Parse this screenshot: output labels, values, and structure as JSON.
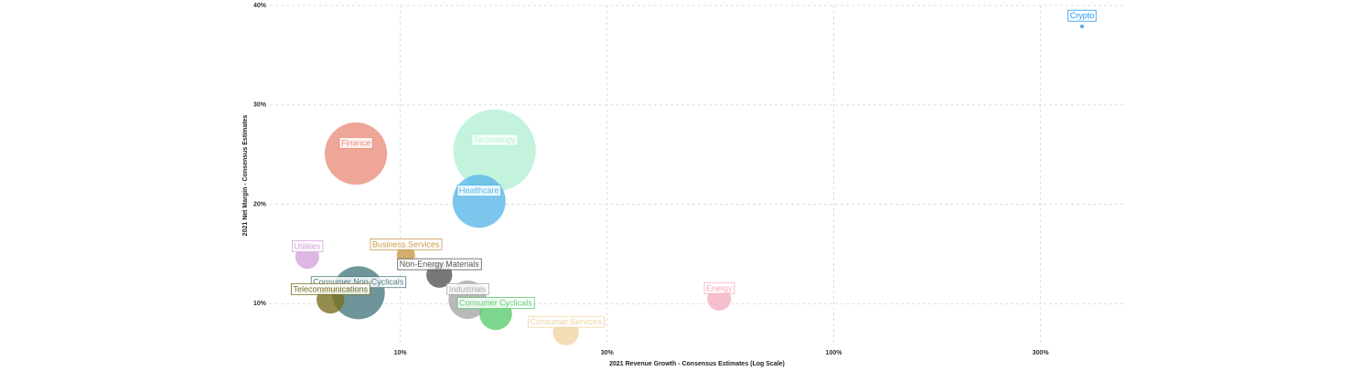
{
  "chart_data": {
    "type": "bubble",
    "x_label": "2021 Revenue Growth - Consensus Estimates (Log Scale)",
    "y_label": "2021 Net Margin - Consensus Estimates",
    "x_log": true,
    "grid": true,
    "xlim": [
      5,
      470
    ],
    "ylim": [
      5.8,
      40
    ],
    "xticks": [
      {
        "value": 10,
        "label": "10%"
      },
      {
        "value": 30,
        "label": "30%"
      },
      {
        "value": 100,
        "label": "100%"
      },
      {
        "value": 300,
        "label": "300%"
      }
    ],
    "yticks": [
      {
        "value": 10,
        "label": "10%"
      },
      {
        "value": 20,
        "label": "20%"
      },
      {
        "value": 30,
        "label": "30%"
      },
      {
        "value": 40,
        "label": "40%"
      }
    ],
    "series": [
      {
        "name": "Crypto",
        "color": "#2196f3",
        "x": [
          374
        ],
        "values": [
          37.9
        ],
        "sizes": [
          0.04
        ]
      },
      {
        "name": "Finance",
        "color": "#e8907e",
        "x": [
          7.9
        ],
        "values": [
          25.1
        ],
        "sizes": [
          11.6
        ]
      },
      {
        "name": "Technology",
        "color": "#b4f0d4",
        "x": [
          16.5
        ],
        "values": [
          25.4
        ],
        "sizes": [
          20.3
        ]
      },
      {
        "name": "Healthcare",
        "color": "#5bb8e8",
        "x": [
          15.2
        ],
        "values": [
          20.3
        ],
        "sizes": [
          8.4
        ]
      },
      {
        "name": "Utilities",
        "color": "#d4a4dc",
        "x": [
          6.1
        ],
        "values": [
          14.7
        ],
        "sizes": [
          1.7
        ]
      },
      {
        "name": "Business Services",
        "color": "#c89a4c",
        "x": [
          10.3
        ],
        "values": [
          14.9
        ],
        "sizes": [
          1.0
        ]
      },
      {
        "name": "Non-Energy Materials",
        "color": "#555555",
        "x": [
          12.3
        ],
        "values": [
          12.9
        ],
        "sizes": [
          2.0
        ]
      },
      {
        "name": "Consumer Non-Cyclicals",
        "color": "#4a7a80",
        "x": [
          8.0
        ],
        "values": [
          11.1
        ],
        "sizes": [
          8.4
        ]
      },
      {
        "name": "Telecommunications",
        "color": "#7a7020",
        "x": [
          6.9
        ],
        "values": [
          10.4
        ],
        "sizes": [
          2.3
        ]
      },
      {
        "name": "Industrials",
        "color": "#a8a8a8",
        "x": [
          14.3
        ],
        "values": [
          10.4
        ],
        "sizes": [
          4.4
        ]
      },
      {
        "name": "Consumer Cyclicals",
        "color": "#5ccc70",
        "x": [
          16.6
        ],
        "values": [
          9.0
        ],
        "sizes": [
          3.2
        ]
      },
      {
        "name": "Consumer Services",
        "color": "#f0d4a4",
        "x": [
          24.1
        ],
        "values": [
          7.1
        ],
        "sizes": [
          2.0
        ]
      },
      {
        "name": "Energy",
        "color": "#f4afc0",
        "x": [
          54.4
        ],
        "values": [
          10.5
        ],
        "sizes": [
          1.7
        ]
      }
    ]
  }
}
